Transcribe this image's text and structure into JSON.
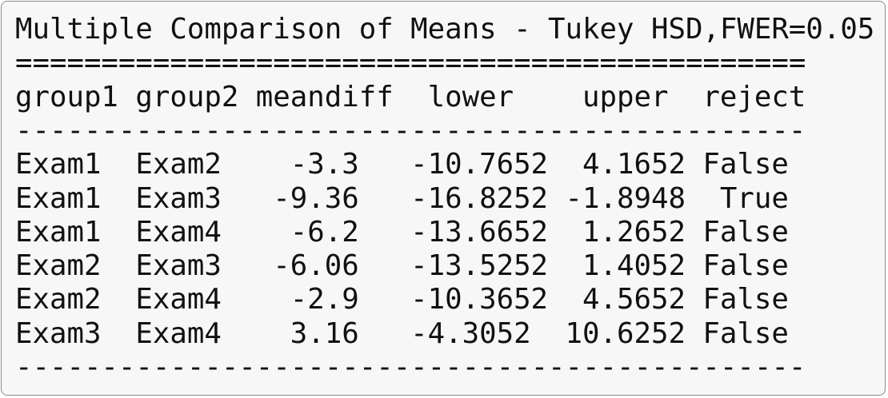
{
  "title": "Multiple Comparison of Means - Tukey HSD,FWER=0.05",
  "rule_top": "==============================================",
  "header": [
    "group1",
    "group2",
    "meandiff",
    "lower",
    "upper",
    "reject"
  ],
  "rule_mid": "----------------------------------------------",
  "rows": [
    [
      "Exam1",
      "Exam2",
      -3.3,
      -10.7652,
      4.1652,
      "False"
    ],
    [
      "Exam1",
      "Exam3",
      -9.36,
      -16.8252,
      -1.8948,
      "True"
    ],
    [
      "Exam1",
      "Exam4",
      -6.2,
      -13.6652,
      1.2652,
      "False"
    ],
    [
      "Exam2",
      "Exam3",
      -6.06,
      -13.5252,
      1.4052,
      "False"
    ],
    [
      "Exam2",
      "Exam4",
      -2.9,
      -10.3652,
      4.5652,
      "False"
    ],
    [
      "Exam3",
      "Exam4",
      3.16,
      -4.3052,
      10.6252,
      "False"
    ]
  ],
  "rule_bottom": "----------------------------------------------"
}
